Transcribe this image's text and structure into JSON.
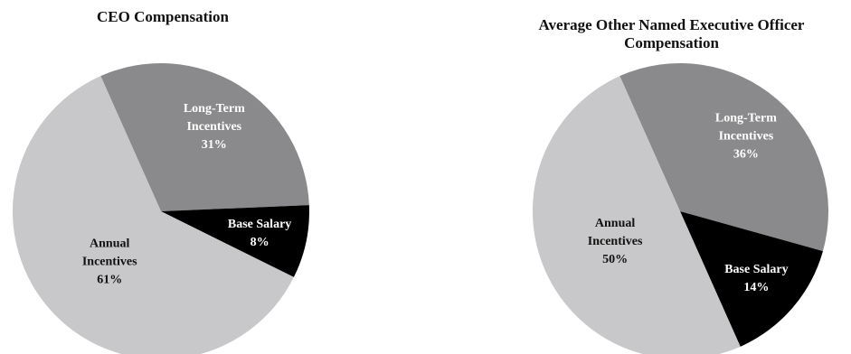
{
  "chart_data": [
    {
      "type": "pie",
      "title": "CEO Compensation",
      "slices": [
        {
          "label_lines": [
            "Long-Term",
            "Incentives"
          ],
          "value_label": "31%",
          "value": 31,
          "color": "#8a8a8c",
          "text_color": "#ffffff"
        },
        {
          "label_lines": [
            "Base Salary"
          ],
          "value_label": "8%",
          "value": 8,
          "color": "#000000",
          "text_color": "#ffffff"
        },
        {
          "label_lines": [
            "Annual",
            "Incentives"
          ],
          "value_label": "61%",
          "value": 61,
          "color": "#c8c8ca",
          "text_color": "#111111"
        }
      ]
    },
    {
      "type": "pie",
      "title": "Average Other Named Executive Officer Compensation",
      "slices": [
        {
          "label_lines": [
            "Long-Term",
            "Incentives"
          ],
          "value_label": "36%",
          "value": 36,
          "color": "#8a8a8c",
          "text_color": "#ffffff"
        },
        {
          "label_lines": [
            "Base Salary"
          ],
          "value_label": "14%",
          "value": 14,
          "color": "#000000",
          "text_color": "#ffffff"
        },
        {
          "label_lines": [
            "Annual",
            "Incentives"
          ],
          "value_label": "50%",
          "value": 50,
          "color": "#c8c8ca",
          "text_color": "#111111"
        }
      ]
    }
  ]
}
